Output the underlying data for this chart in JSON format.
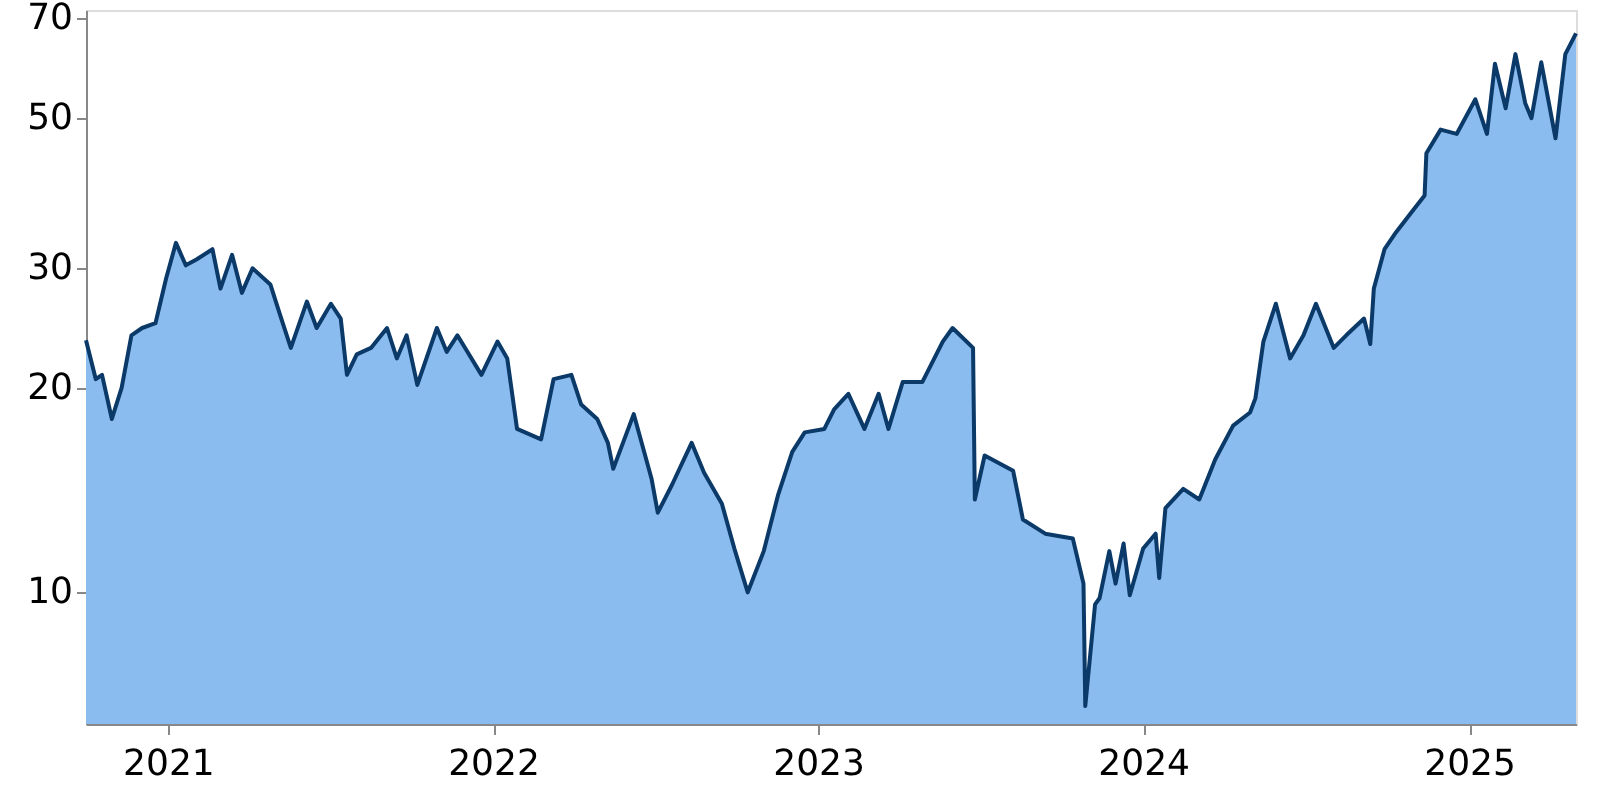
{
  "chart_data": {
    "type": "area",
    "log": "y",
    "grid": false,
    "marker": "none",
    "line_style": "solid",
    "xlim": [
      "2020-10-01",
      "2025-05-01"
    ],
    "xticks": [
      {
        "value": "2021-01-01",
        "label": "2021"
      },
      {
        "value": "2022-01-01",
        "label": "2022"
      },
      {
        "value": "2023-01-01",
        "label": "2023"
      },
      {
        "value": "2024-01-01",
        "label": "2024"
      },
      {
        "value": "2025-01-01",
        "label": "2025"
      }
    ],
    "ylim": [
      6.4,
      72
    ],
    "yticks": [
      10,
      20,
      30,
      50,
      70
    ],
    "x": [
      "2020-10-01",
      "2020-10-12",
      "2020-10-19",
      "2020-10-30",
      "2020-11-10",
      "2020-11-21",
      "2020-12-03",
      "2020-12-18",
      "2020-12-30",
      "2021-01-10",
      "2021-01-21",
      "2021-02-02",
      "2021-02-20",
      "2021-03-01",
      "2021-03-14",
      "2021-03-25",
      "2021-04-06",
      "2021-04-26",
      "2021-05-07",
      "2021-05-19",
      "2021-06-06",
      "2021-06-17",
      "2021-07-03",
      "2021-07-14",
      "2021-07-21",
      "2021-08-01",
      "2021-08-17",
      "2021-09-04",
      "2021-09-15",
      "2021-09-26",
      "2021-10-08",
      "2021-10-30",
      "2021-11-10",
      "2021-11-22",
      "2021-12-19",
      "2022-01-06",
      "2022-01-17",
      "2022-01-28",
      "2022-02-24",
      "2022-03-10",
      "2022-03-30",
      "2022-04-10",
      "2022-04-28",
      "2022-05-10",
      "2022-05-16",
      "2022-06-08",
      "2022-06-28",
      "2022-07-05",
      "2022-07-21",
      "2022-08-12",
      "2022-08-26",
      "2022-09-15",
      "2022-09-29",
      "2022-10-14",
      "2022-11-01",
      "2022-11-17",
      "2022-12-03",
      "2022-12-17",
      "2023-01-08",
      "2023-01-19",
      "2023-02-04",
      "2023-02-22",
      "2023-03-10",
      "2023-03-21",
      "2023-04-06",
      "2023-04-28",
      "2023-05-21",
      "2023-06-01",
      "2023-06-24",
      "2023-06-26",
      "2023-07-07",
      "2023-08-08",
      "2023-08-19",
      "2023-09-13",
      "2023-10-14",
      "2023-10-26",
      "2023-10-28",
      "2023-11-08",
      "2023-11-13",
      "2023-11-24",
      "2023-12-01",
      "2023-12-10",
      "2023-12-17",
      "2024-01-01",
      "2024-01-15",
      "2024-01-19",
      "2024-01-26",
      "2024-02-15",
      "2024-03-04",
      "2024-03-22",
      "2024-04-11",
      "2024-04-30",
      "2024-05-06",
      "2024-05-15",
      "2024-05-29",
      "2024-06-14",
      "2024-06-29",
      "2024-07-13",
      "2024-08-02",
      "2024-08-16",
      "2024-09-05",
      "2024-09-12",
      "2024-09-16",
      "2024-09-28",
      "2024-10-11",
      "2024-10-27",
      "2024-11-12",
      "2024-11-14",
      "2024-11-30",
      "2024-12-18",
      "2025-01-08",
      "2025-01-21",
      "2025-01-30",
      "2025-02-11",
      "2025-02-22",
      "2025-03-05",
      "2025-03-12",
      "2025-03-23",
      "2025-04-08",
      "2025-04-19",
      "2025-05-01"
    ],
    "series": [
      {
        "color": "#8bbcf0",
        "values": [
          23.5,
          20.6,
          20.9,
          18.0,
          20.0,
          23.9,
          24.5,
          24.9,
          29.0,
          32.7,
          30.3,
          30.9,
          32.0,
          28.0,
          31.4,
          27.6,
          30.0,
          28.4,
          25.6,
          22.9,
          26.8,
          24.5,
          26.6,
          25.3,
          20.9,
          22.4,
          22.9,
          24.5,
          22.1,
          23.9,
          20.2,
          24.5,
          22.6,
          23.9,
          20.9,
          23.4,
          22.1,
          17.4,
          16.8,
          20.6,
          20.9,
          18.9,
          18.0,
          16.6,
          15.2,
          18.3,
          14.7,
          13.1,
          14.4,
          16.6,
          15.0,
          13.5,
          11.6,
          10.0,
          11.5,
          13.9,
          16.1,
          17.2,
          17.4,
          18.6,
          19.6,
          17.4,
          19.6,
          17.4,
          20.4,
          20.4,
          23.4,
          24.5,
          22.9,
          13.7,
          15.9,
          15.1,
          12.8,
          12.2,
          12.0,
          10.3,
          6.8,
          9.6,
          9.8,
          11.5,
          10.3,
          11.8,
          9.9,
          11.6,
          12.2,
          10.5,
          13.3,
          14.2,
          13.7,
          15.7,
          17.6,
          18.4,
          19.3,
          23.4,
          26.6,
          22.1,
          23.9,
          26.6,
          22.9,
          23.9,
          25.3,
          23.2,
          28.0,
          32.0,
          33.9,
          36.1,
          38.4,
          44.3,
          48.0,
          47.3,
          53.2,
          47.3,
          60.0,
          51.6,
          62.0,
          52.5,
          49.9,
          60.3,
          46.6,
          62.0,
          66.5
        ]
      }
    ]
  }
}
